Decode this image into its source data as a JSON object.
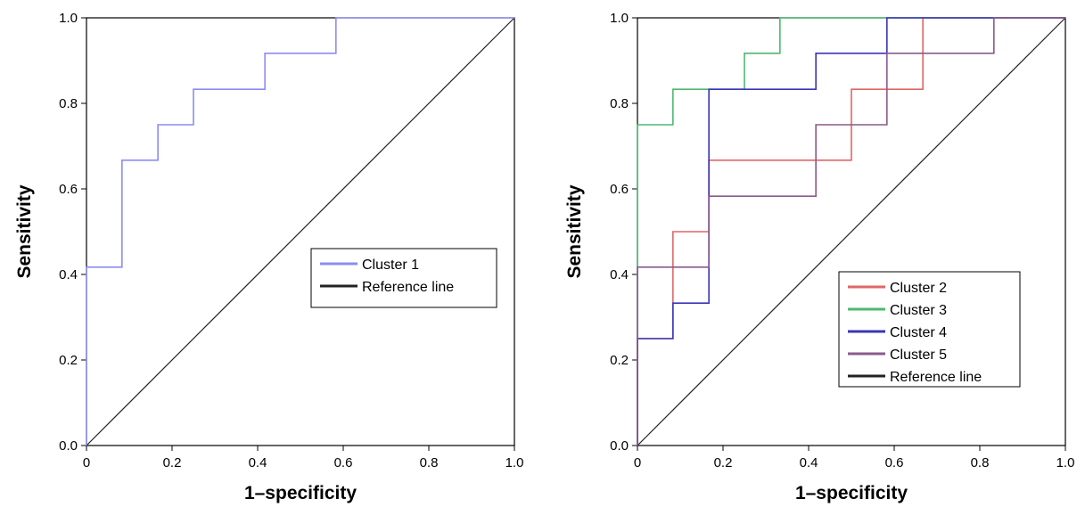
{
  "chart_data": [
    {
      "type": "line",
      "step": true,
      "title": "",
      "xlabel": "1–specificity",
      "ylabel": "Sensitivity",
      "xlim": [
        0,
        1
      ],
      "ylim": [
        0,
        1
      ],
      "x_ticks": [
        "0",
        "0.2",
        "0.4",
        "0.6",
        "0.8",
        "1.0"
      ],
      "y_ticks": [
        "0.0",
        "0.2",
        "0.4",
        "0.6",
        "0.8",
        "1.0"
      ],
      "legend_position": "center-right",
      "series": [
        {
          "name": "Cluster 1",
          "color": "#8c8cf2",
          "points": [
            [
              0,
              0
            ],
            [
              0,
              0.417
            ],
            [
              0.083,
              0.417
            ],
            [
              0.083,
              0.667
            ],
            [
              0.167,
              0.667
            ],
            [
              0.167,
              0.75
            ],
            [
              0.25,
              0.75
            ],
            [
              0.25,
              0.833
            ],
            [
              0.417,
              0.833
            ],
            [
              0.417,
              0.917
            ],
            [
              0.583,
              0.917
            ],
            [
              0.583,
              1.0
            ],
            [
              1.0,
              1.0
            ]
          ]
        },
        {
          "name": "Reference line",
          "color": "#222222",
          "points": [
            [
              0,
              0
            ],
            [
              1,
              1
            ]
          ]
        }
      ]
    },
    {
      "type": "line",
      "step": true,
      "title": "",
      "xlabel": "1–specificity",
      "ylabel": "Sensitivity",
      "xlim": [
        0,
        1
      ],
      "ylim": [
        0,
        1
      ],
      "x_ticks": [
        "0",
        "0.2",
        "0.4",
        "0.6",
        "0.8",
        "1.0"
      ],
      "y_ticks": [
        "0.0",
        "0.2",
        "0.4",
        "0.6",
        "0.8",
        "1.0"
      ],
      "legend_position": "bottom-right",
      "series": [
        {
          "name": "Cluster 2",
          "color": "#e06666",
          "points": [
            [
              0,
              0
            ],
            [
              0,
              0.25
            ],
            [
              0.083,
              0.25
            ],
            [
              0.083,
              0.5
            ],
            [
              0.167,
              0.5
            ],
            [
              0.167,
              0.667
            ],
            [
              0.5,
              0.667
            ],
            [
              0.5,
              0.833
            ],
            [
              0.667,
              0.833
            ],
            [
              0.667,
              1.0
            ],
            [
              1.0,
              1.0
            ]
          ]
        },
        {
          "name": "Cluster 3",
          "color": "#4db870",
          "points": [
            [
              0,
              0
            ],
            [
              0,
              0.75
            ],
            [
              0.083,
              0.75
            ],
            [
              0.083,
              0.833
            ],
            [
              0.25,
              0.833
            ],
            [
              0.25,
              0.917
            ],
            [
              0.333,
              0.917
            ],
            [
              0.333,
              1.0
            ],
            [
              1.0,
              1.0
            ]
          ]
        },
        {
          "name": "Cluster 4",
          "color": "#3a35b8",
          "points": [
            [
              0,
              0
            ],
            [
              0,
              0.25
            ],
            [
              0.083,
              0.25
            ],
            [
              0.083,
              0.333
            ],
            [
              0.167,
              0.333
            ],
            [
              0.167,
              0.833
            ],
            [
              0.417,
              0.833
            ],
            [
              0.417,
              0.917
            ],
            [
              0.583,
              0.917
            ],
            [
              0.583,
              1.0
            ],
            [
              1.0,
              1.0
            ]
          ]
        },
        {
          "name": "Cluster 5",
          "color": "#8a5a8a",
          "points": [
            [
              0,
              0
            ],
            [
              0,
              0.417
            ],
            [
              0.167,
              0.417
            ],
            [
              0.167,
              0.583
            ],
            [
              0.417,
              0.583
            ],
            [
              0.417,
              0.75
            ],
            [
              0.583,
              0.75
            ],
            [
              0.583,
              0.917
            ],
            [
              0.833,
              0.917
            ],
            [
              0.833,
              1.0
            ],
            [
              1.0,
              1.0
            ]
          ]
        },
        {
          "name": "Reference line",
          "color": "#222222",
          "points": [
            [
              0,
              0
            ],
            [
              1,
              1
            ]
          ]
        }
      ]
    }
  ]
}
